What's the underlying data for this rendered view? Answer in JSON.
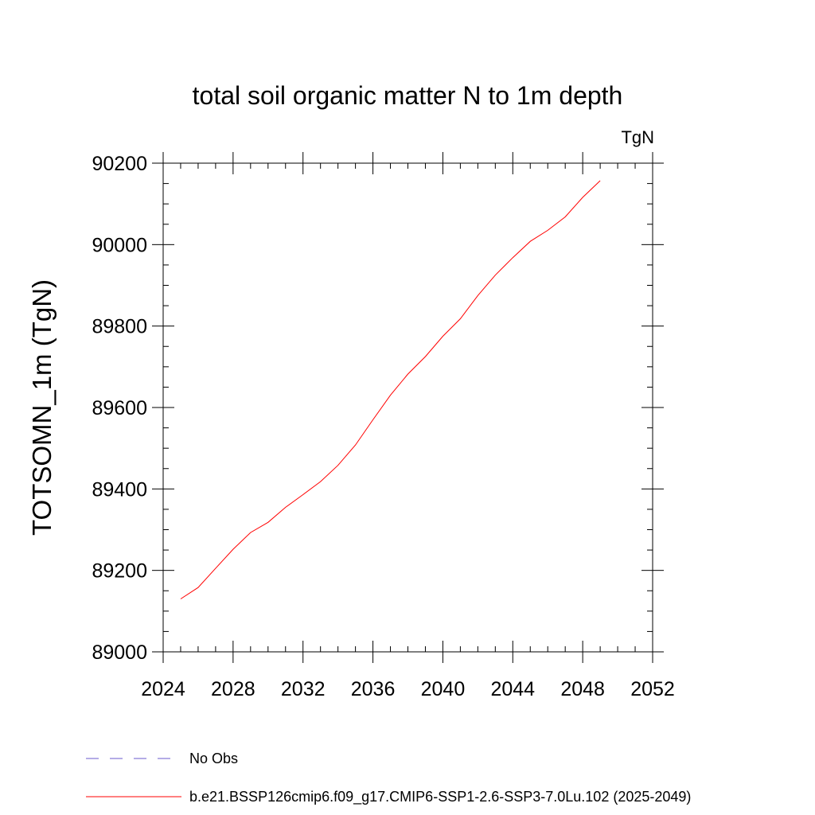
{
  "chart_data": {
    "type": "line",
    "title": "total soil organic matter N to 1m depth",
    "units": "TgN",
    "xlabel": "",
    "ylabel": "TOTSOMN_1m  (TgN)",
    "xlim": [
      2024,
      2052
    ],
    "ylim": [
      89000,
      90200
    ],
    "x_ticks": [
      2024,
      2028,
      2032,
      2036,
      2040,
      2044,
      2048,
      2052
    ],
    "y_ticks": [
      89000,
      89200,
      89400,
      89600,
      89800,
      90000,
      90200
    ],
    "x_minor_step": 1,
    "y_minor_step": 50,
    "grid": false,
    "legend_position": "bottom-left",
    "series": [
      {
        "name": "b.e21.BSSP126cmip6.f09_g17.CMIP6-SSP1-2.6-SSP3-7.0Lu.102 (2025-2049)",
        "color": "#ff0000",
        "style": "solid",
        "x": [
          2025,
          2026,
          2027,
          2028,
          2029,
          2030,
          2031,
          2032,
          2033,
          2034,
          2035,
          2036,
          2037,
          2038,
          2039,
          2040,
          2041,
          2042,
          2043,
          2044,
          2045,
          2046,
          2047,
          2048,
          2049
        ],
        "y": [
          89130,
          89158,
          89205,
          89252,
          89293,
          89318,
          89355,
          89386,
          89418,
          89458,
          89508,
          89570,
          89630,
          89682,
          89725,
          89775,
          89818,
          89875,
          89925,
          89968,
          90008,
          90035,
          90068,
          90116,
          90157
        ]
      }
    ],
    "legend": [
      {
        "label": "No Obs",
        "color": "#6a5acd",
        "style": "dashed"
      },
      {
        "label": "b.e21.BSSP126cmip6.f09_g17.CMIP6-SSP1-2.6-SSP3-7.0Lu.102 (2025-2049)",
        "color": "#ff0000",
        "style": "solid"
      }
    ]
  }
}
